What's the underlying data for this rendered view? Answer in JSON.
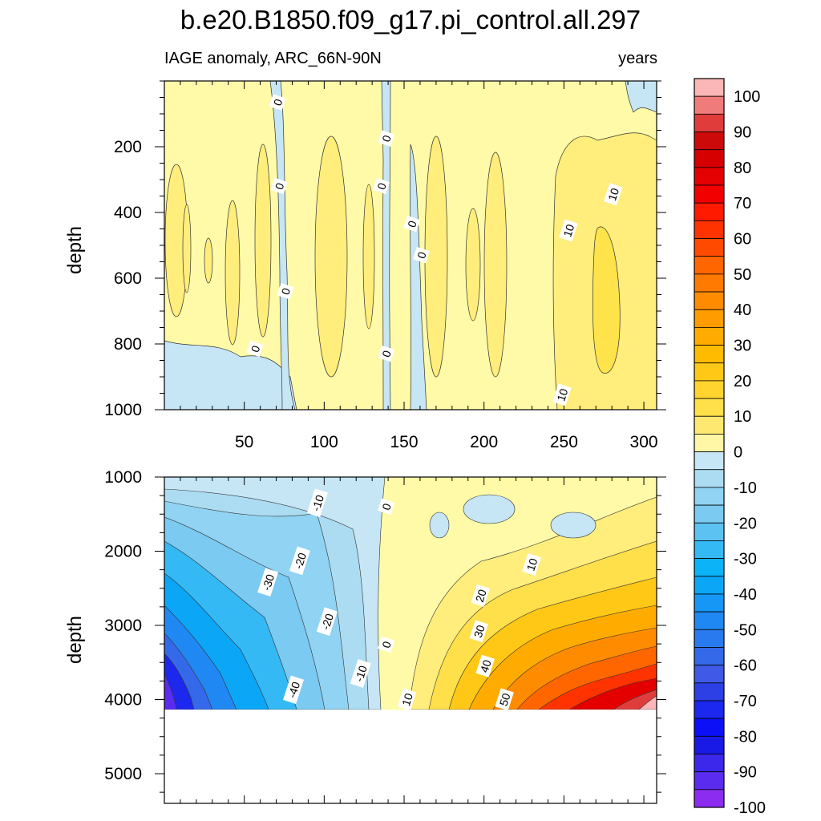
{
  "chart_data": {
    "type": "heatmap",
    "title": "b.e20.B1850.f09_g17.pi_control.all.297",
    "subtitle_left": "IAGE anomaly, ARC_66N-90N",
    "subtitle_right": "years",
    "xlabel": "",
    "ylabel": "depth",
    "xlim": [
      0,
      308
    ],
    "x_ticks": [
      50,
      100,
      150,
      200,
      250,
      300
    ],
    "panels": [
      {
        "name": "upper",
        "ylim": [
          1000,
          0
        ],
        "y_ticks": [
          200,
          400,
          600,
          800,
          1000
        ],
        "contour_labels": [
          {
            "text": "0",
            "x": 71,
            "y": 65
          },
          {
            "text": "0",
            "x": 139,
            "y": 175
          },
          {
            "text": "0",
            "x": 72,
            "y": 320
          },
          {
            "text": "0",
            "x": 136,
            "y": 320
          },
          {
            "text": "0",
            "x": 155,
            "y": 435
          },
          {
            "text": "0",
            "x": 161,
            "y": 530
          },
          {
            "text": "0",
            "x": 76,
            "y": 640
          },
          {
            "text": "0",
            "x": 57,
            "y": 815
          },
          {
            "text": "0",
            "x": 139,
            "y": 830
          },
          {
            "text": "10",
            "x": 281,
            "y": 345
          },
          {
            "text": "10",
            "x": 253,
            "y": 455
          },
          {
            "text": "10",
            "x": 249,
            "y": 955
          }
        ]
      },
      {
        "name": "lower",
        "ylim": [
          1000,
          5400
        ],
        "y_ticks": [
          1000,
          2000,
          3000,
          4000,
          5000
        ],
        "data_bottom_depth": 4120,
        "contour_labels": [
          {
            "text": "-10",
            "x": 96,
            "y": 1350
          },
          {
            "text": "0",
            "x": 139,
            "y": 1400
          },
          {
            "text": "-20",
            "x": 85,
            "y": 2130
          },
          {
            "text": "-30",
            "x": 65,
            "y": 2420
          },
          {
            "text": "10",
            "x": 230,
            "y": 2180
          },
          {
            "text": "20",
            "x": 198,
            "y": 2600
          },
          {
            "text": "-20",
            "x": 102,
            "y": 2950
          },
          {
            "text": "30",
            "x": 197,
            "y": 3080
          },
          {
            "text": "0",
            "x": 139,
            "y": 3260
          },
          {
            "text": "40",
            "x": 201,
            "y": 3550
          },
          {
            "text": "-10",
            "x": 123,
            "y": 3650
          },
          {
            "text": "-40",
            "x": 81,
            "y": 3870
          },
          {
            "text": "10",
            "x": 152,
            "y": 4000
          },
          {
            "text": "50",
            "x": 213,
            "y": 4000
          }
        ]
      }
    ],
    "colorbar": {
      "labels": [
        "100",
        "90",
        "80",
        "70",
        "60",
        "50",
        "40",
        "30",
        "20",
        "10",
        "0",
        "-10",
        "-20",
        "-30",
        "-40",
        "-50",
        "-60",
        "-70",
        "-80",
        "-90",
        "-100"
      ],
      "colors": [
        "#fbb7b7",
        "#f07b7b",
        "#e03c3c",
        "#cc0a0a",
        "#d60000",
        "#e40000",
        "#f20000",
        "#ff1a00",
        "#ff3300",
        "#ff4a00",
        "#ff6600",
        "#ff7a00",
        "#ff8c00",
        "#ff9c00",
        "#ffab00",
        "#ffbb00",
        "#ffc816",
        "#ffd42e",
        "#ffdf4a",
        "#ffe870",
        "#fff7a6",
        "#c6e5f5",
        "#acdcf2",
        "#90d3f2",
        "#7acaf2",
        "#5cc2f2",
        "#34b9f5",
        "#0cb3f7",
        "#0ca6f7",
        "#1697f5",
        "#2088f2",
        "#2a7aef",
        "#3469e9",
        "#3e5ae6",
        "#2c40e6",
        "#1c28ee",
        "#0c10f7",
        "#1a1ae6",
        "#3c28ea",
        "#5a2cf0",
        "#8c2cf0"
      ]
    }
  }
}
